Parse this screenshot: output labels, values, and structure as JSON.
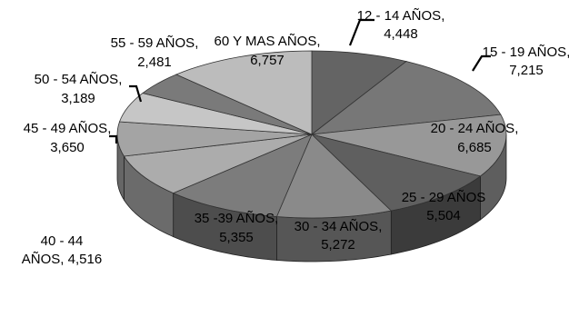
{
  "chart_data": {
    "type": "pie",
    "title": "",
    "slices": [
      {
        "label": "12 - 14 AÑOS,",
        "value": 4448,
        "value_label": "4,448",
        "color": "#646464"
      },
      {
        "label": "15 - 19 AÑOS,",
        "value": 7215,
        "value_label": "7,215",
        "color": "#777777"
      },
      {
        "label": "20 - 24 AÑOS,",
        "value": 6685,
        "value_label": "6,685",
        "color": "#989898"
      },
      {
        "label": "25 - 29 AÑOS",
        "value": 5504,
        "value_label": "5,504",
        "color": "#5f5f5f"
      },
      {
        "label": "30 - 34 AÑOS,",
        "value": 5272,
        "value_label": "5,272",
        "color": "#8a8a8a"
      },
      {
        "label": "35 -39 AÑOS,",
        "value": 5355,
        "value_label": "5,355",
        "color": "#7c7c7c"
      },
      {
        "label": "40 - 44 AÑOS, 4,516",
        "value": 4516,
        "value_label": "",
        "color": "#acacac"
      },
      {
        "label": "45 - 49 AÑOS,",
        "value": 3650,
        "value_label": "3,650",
        "color": "#a4a4a4"
      },
      {
        "label": "50 - 54 AÑOS,",
        "value": 3189,
        "value_label": "3,189",
        "color": "#c6c6c6"
      },
      {
        "label": "55 - 59 AÑOS,",
        "value": 2481,
        "value_label": "2,481",
        "color": "#7a7a7a"
      },
      {
        "label": "60  Y MAS AÑOS,",
        "value": 6757,
        "value_label": "6,757",
        "color": "#bcbcbc"
      }
    ]
  }
}
